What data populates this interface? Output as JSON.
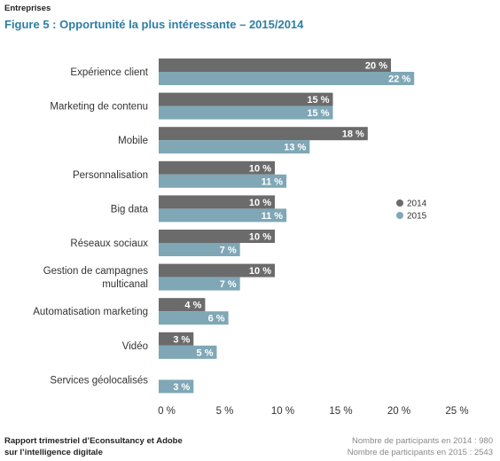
{
  "header": {
    "section": "Entreprises",
    "title": "Figure 5 : Opportunité la plus intéressante – 2015/2014"
  },
  "footer": {
    "source_line1": "Rapport trimestriel d’Econsultancy et Adobe",
    "source_line2": "sur l’intelligence digitale",
    "participants_2014": "Nombre de participants en 2014 : 980",
    "participants_2015": "Nombre de participants en 2015 : 2543"
  },
  "chart_data": {
    "type": "bar",
    "orientation": "horizontal",
    "categories": [
      [
        "Expérience client"
      ],
      [
        "Marketing de contenu"
      ],
      [
        "Mobile"
      ],
      [
        "Personnalisation"
      ],
      [
        "Big data"
      ],
      [
        "Réseaux sociaux"
      ],
      [
        "Gestion de campagnes",
        "multicanal"
      ],
      [
        "Automatisation marketing"
      ],
      [
        "Vidéo"
      ],
      [
        "Services géolocalisés"
      ]
    ],
    "series": [
      {
        "name": "2014",
        "color": "#6b6b6b",
        "values": [
          20,
          15,
          18,
          10,
          10,
          10,
          10,
          4,
          3,
          null
        ]
      },
      {
        "name": "2015",
        "color": "#7fa7b6",
        "values": [
          22,
          15,
          13,
          11,
          11,
          7,
          7,
          6,
          5,
          3
        ]
      }
    ],
    "value_suffix": " %",
    "xlim": [
      0,
      25
    ],
    "xticks": [
      "0 %",
      "5 %",
      "10 %",
      "15 %",
      "20 %",
      "25 %"
    ],
    "legend_position": "right",
    "grid": false
  }
}
